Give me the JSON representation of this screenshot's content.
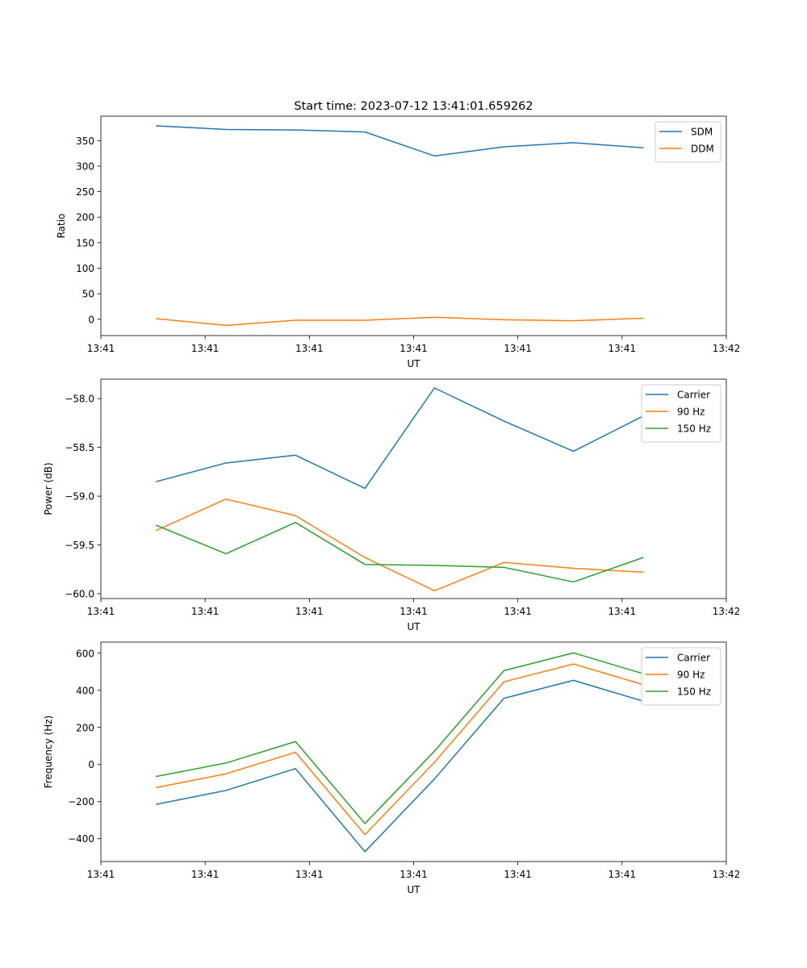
{
  "figure": {
    "title": "Start time: 2023-07-12 13:41:01.659262"
  },
  "colors": {
    "blue": "#1f77b4",
    "orange": "#ff7f0e",
    "green": "#2ca02c"
  },
  "chart_data": [
    {
      "type": "line",
      "title": "Start time: 2023-07-12 13:41:01.659262",
      "xlabel": "UT",
      "ylabel": "Ratio",
      "x": [
        1,
        2,
        3,
        4,
        5,
        6,
        7,
        8
      ],
      "xlim": [
        0.2,
        9.2
      ],
      "xticks": [
        0.2,
        1.7,
        3.2,
        4.7,
        6.2,
        7.7,
        9.2
      ],
      "xtick_labels": [
        "13:41",
        "13:41",
        "13:41",
        "13:41",
        "13:41",
        "13:41",
        "13:42"
      ],
      "ylim": [
        -32,
        398
      ],
      "yticks": [
        0,
        50,
        100,
        150,
        200,
        250,
        300,
        350
      ],
      "ytick_labels": [
        "0",
        "50",
        "100",
        "150",
        "200",
        "250",
        "300",
        "350"
      ],
      "legend_position": "top-right",
      "series": [
        {
          "name": "SDM",
          "color": "#1f77b4",
          "values": [
            379,
            372,
            371,
            367,
            320,
            338,
            346,
            336
          ]
        },
        {
          "name": "DDM",
          "color": "#ff7f0e",
          "values": [
            1,
            -12,
            -2,
            -2,
            4,
            -1,
            -3,
            2
          ]
        }
      ]
    },
    {
      "type": "line",
      "xlabel": "UT",
      "ylabel": "Power (dB)",
      "x": [
        1,
        2,
        3,
        4,
        5,
        6,
        7,
        8
      ],
      "xlim": [
        0.2,
        9.2
      ],
      "xticks": [
        0.2,
        1.7,
        3.2,
        4.7,
        6.2,
        7.7,
        9.2
      ],
      "xtick_labels": [
        "13:41",
        "13:41",
        "13:41",
        "13:41",
        "13:41",
        "13:41",
        "13:42"
      ],
      "ylim": [
        -60.05,
        -57.8
      ],
      "yticks": [
        -60.0,
        -59.5,
        -59.0,
        -58.5,
        -58.0
      ],
      "ytick_labels": [
        "−60.0",
        "−59.5",
        "−59.0",
        "−58.5",
        "−58.0"
      ],
      "legend_position": "top-right",
      "series": [
        {
          "name": "Carrier",
          "color": "#1f77b4",
          "values": [
            -58.85,
            -58.66,
            -58.58,
            -58.92,
            -57.89,
            -58.23,
            -58.54,
            -58.18
          ]
        },
        {
          "name": "90 Hz",
          "color": "#ff7f0e",
          "values": [
            -59.35,
            -59.03,
            -59.2,
            -59.63,
            -59.97,
            -59.68,
            -59.74,
            -59.78
          ]
        },
        {
          "name": "150 Hz",
          "color": "#2ca02c",
          "values": [
            -59.3,
            -59.59,
            -59.27,
            -59.7,
            -59.71,
            -59.73,
            -59.88,
            -59.63
          ]
        }
      ]
    },
    {
      "type": "line",
      "xlabel": "UT",
      "ylabel": "Frequency (Hz)",
      "x": [
        1,
        2,
        3,
        4,
        5,
        6,
        7,
        8
      ],
      "xlim": [
        0.2,
        9.2
      ],
      "xticks": [
        0.2,
        1.7,
        3.2,
        4.7,
        6.2,
        7.7,
        9.2
      ],
      "xtick_labels": [
        "13:41",
        "13:41",
        "13:41",
        "13:41",
        "13:41",
        "13:41",
        "13:42"
      ],
      "ylim": [
        -523,
        660
      ],
      "yticks": [
        -400,
        -200,
        0,
        200,
        400,
        600
      ],
      "ytick_labels": [
        "−400",
        "−200",
        "0",
        "200",
        "400",
        "600"
      ],
      "legend_position": "top-right",
      "series": [
        {
          "name": "Carrier",
          "color": "#1f77b4",
          "values": [
            -214,
            -140,
            -22,
            -470,
            -78,
            357,
            454,
            342
          ]
        },
        {
          "name": "90 Hz",
          "color": "#ff7f0e",
          "values": [
            -124,
            -50,
            66,
            -378,
            12,
            446,
            542,
            431
          ]
        },
        {
          "name": "150 Hz",
          "color": "#2ca02c",
          "values": [
            -64,
            8,
            124,
            -318,
            72,
            506,
            602,
            490
          ]
        }
      ]
    }
  ]
}
